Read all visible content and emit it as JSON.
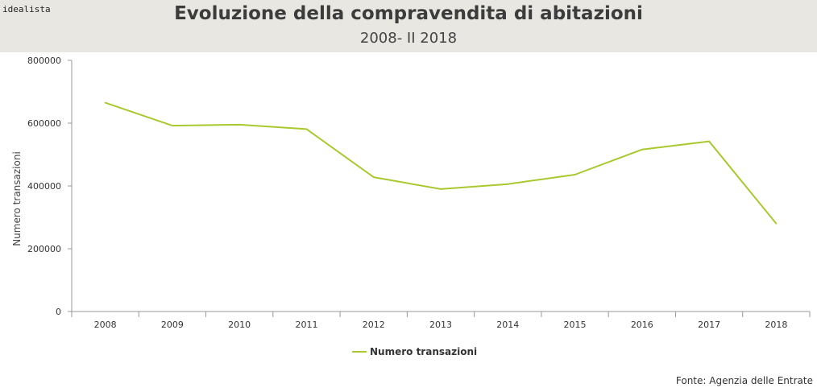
{
  "brand": "idealista",
  "source": "Fonte: Agenzia delle Entrate",
  "colors": {
    "line": "#a8c92e",
    "axis": "#999999",
    "header_bg": "#e8e7e2"
  },
  "chart_data": {
    "type": "line",
    "title": "Evoluzione della compravendita di abitazioni",
    "subtitle": "2008- II 2018",
    "xlabel": "",
    "ylabel": "Numero transazioni",
    "categories": [
      "2008",
      "2009",
      "2010",
      "2011",
      "2012",
      "2013",
      "2014",
      "2015",
      "2016",
      "2017",
      "2018"
    ],
    "series": [
      {
        "name": "Numero transazioni",
        "values": [
          665000,
          592000,
          595000,
          581000,
          428000,
          390000,
          406000,
          436000,
          516000,
          542000,
          280000
        ]
      }
    ],
    "ylim": [
      0,
      800000
    ],
    "yticks": [
      0,
      200000,
      400000,
      600000,
      800000
    ],
    "ytick_labels": [
      "0",
      "200000",
      "400000",
      "600000",
      "800000"
    ],
    "legend": "bottom-center",
    "grid": false
  }
}
